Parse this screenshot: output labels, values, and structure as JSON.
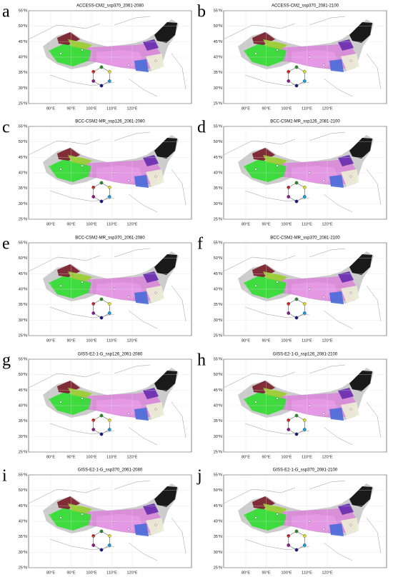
{
  "panels": [
    {
      "letter": "a",
      "title": "ACCESS-CM2_ssp370_2061-2080"
    },
    {
      "letter": "b",
      "title": "ACCESS-CM2_ssp370_2081-2100"
    },
    {
      "letter": "c",
      "title": "BCC-CSM2-MR_ssp126_2061-2080"
    },
    {
      "letter": "d",
      "title": "BCC-CSM2-MR_ssp126_2081-2100"
    },
    {
      "letter": "e",
      "title": "BCC-CSM2-MR_ssp370_2061-2080"
    },
    {
      "letter": "f",
      "title": "BCC-CSM2-MR_ssp370_2081-2100"
    },
    {
      "letter": "g",
      "title": "GISS-E2-1-G_ssp126_2061-2080"
    },
    {
      "letter": "h",
      "title": "GISS-E2-1-G_ssp126_2081-2100"
    },
    {
      "letter": "i",
      "title": "GISS-E2-1-G_ssp370_2061-2080"
    },
    {
      "letter": "j",
      "title": "GISS-E2-1-G_ssp370_2081-2100"
    }
  ],
  "lat_ticks": [
    "55°N",
    "50°N",
    "45°N",
    "40°N",
    "35°N",
    "30°N",
    "25°N"
  ],
  "lon_ticks": [
    "80°E",
    "90°E",
    "100°E",
    "110°E",
    "120°E"
  ]
}
